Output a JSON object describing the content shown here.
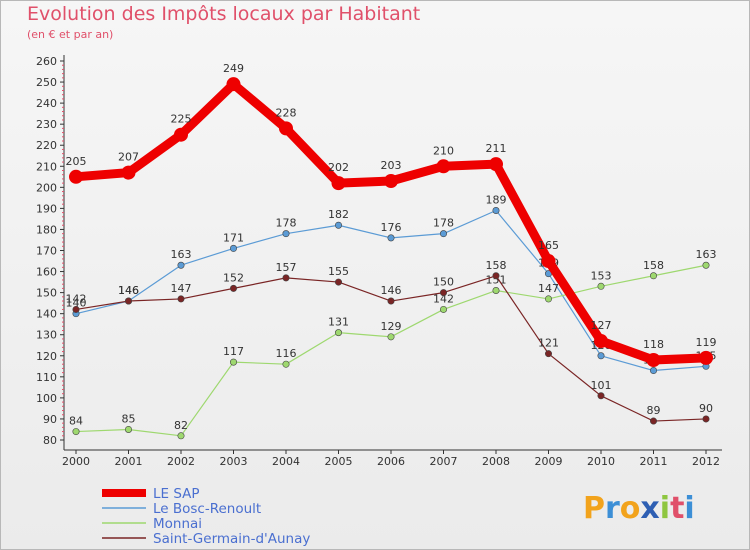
{
  "title": "Evolution des Impôts locaux par Habitant",
  "subtitle": "(en € et par an)",
  "logo": {
    "text": "Proxiti",
    "letters": [
      {
        "ch": "P",
        "color": "#f2a31c"
      },
      {
        "ch": "r",
        "color": "#3c8fd6"
      },
      {
        "ch": "o",
        "color": "#f2a31c"
      },
      {
        "ch": "x",
        "color": "#2e5fb3"
      },
      {
        "ch": "i",
        "color": "#8ec640"
      },
      {
        "ch": "t",
        "color": "#e0506a"
      },
      {
        "ch": "i",
        "color": "#3c8fd6"
      }
    ]
  },
  "chart_data": {
    "type": "line",
    "title": "Evolution des Impôts locaux par Habitant",
    "subtitle": "(en € et par an)",
    "xlabel": "",
    "ylabel": "",
    "ylim": [
      80,
      260
    ],
    "yticks": [
      80,
      90,
      100,
      110,
      120,
      130,
      140,
      150,
      160,
      170,
      180,
      190,
      200,
      210,
      220,
      230,
      240,
      250,
      260
    ],
    "grid": false,
    "legend_position": "bottom-left",
    "x": [
      "2000",
      "2001",
      "2002",
      "2003",
      "2004",
      "2005",
      "2006",
      "2007",
      "2008",
      "2009",
      "2010",
      "2011",
      "2012"
    ],
    "series": [
      {
        "name": "LE SAP",
        "color": "#ee0000",
        "emphasis": "thick",
        "values": [
          205,
          207,
          225,
          249,
          228,
          202,
          203,
          210,
          211,
          165,
          127,
          118,
          119
        ]
      },
      {
        "name": "Le Bosc-Renoult",
        "color": "#5b9bd5",
        "emphasis": "thin",
        "values": [
          140,
          146,
          163,
          171,
          178,
          182,
          176,
          178,
          189,
          159,
          120,
          113,
          115
        ]
      },
      {
        "name": "Monnai",
        "color": "#9ed86f",
        "emphasis": "thin",
        "values": [
          84,
          85,
          82,
          117,
          116,
          131,
          129,
          142,
          151,
          147,
          153,
          158,
          163
        ]
      },
      {
        "name": "Saint-Germain-d'Aunay",
        "color": "#7a2525",
        "emphasis": "thin",
        "values": [
          142,
          146,
          147,
          152,
          157,
          155,
          146,
          150,
          158,
          121,
          101,
          89,
          90
        ]
      }
    ]
  }
}
